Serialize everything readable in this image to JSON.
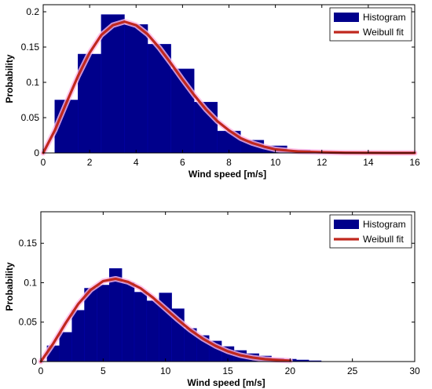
{
  "colors": {
    "histogram": "#00008b",
    "fit": "#c0281e",
    "fit_glow": "#ffb6e6",
    "axes": "#000000"
  },
  "chart_data": [
    {
      "type": "bar",
      "title": "",
      "xlabel": "Wind speed [m/s]",
      "ylabel": "Probability",
      "xlim": [
        0,
        16
      ],
      "ylim": [
        0,
        0.21
      ],
      "xticks": [
        0,
        2,
        4,
        6,
        8,
        10,
        12,
        14,
        16
      ],
      "yticks": [
        0,
        0.05,
        0.1,
        0.15,
        0.2
      ],
      "ytick_labels": [
        "0",
        "0.05",
        "0.1",
        "0.15",
        "0.2"
      ],
      "grid": false,
      "legend_position": "top-right",
      "series": [
        {
          "name": "Histogram",
          "type": "bar",
          "bin_width": 1,
          "x": [
            1,
            2,
            3,
            4,
            5,
            6,
            7,
            8,
            9,
            10,
            11
          ],
          "values": [
            0.075,
            0.14,
            0.196,
            0.182,
            0.154,
            0.119,
            0.072,
            0.031,
            0.018,
            0.01,
            0.004
          ]
        },
        {
          "name": "Weibull fit",
          "type": "line",
          "shape_k": 2.2,
          "scale_c": 4.9,
          "x": [
            0,
            0.5,
            1,
            1.5,
            2,
            2.5,
            3,
            3.5,
            4,
            4.5,
            5,
            5.5,
            6,
            6.5,
            7,
            7.5,
            8,
            8.5,
            9,
            9.5,
            10,
            11,
            12,
            13,
            14,
            15,
            16
          ],
          "values": [
            0,
            0.032,
            0.071,
            0.109,
            0.142,
            0.167,
            0.181,
            0.186,
            0.181,
            0.168,
            0.149,
            0.127,
            0.104,
            0.082,
            0.062,
            0.045,
            0.032,
            0.021,
            0.014,
            0.009,
            0.005,
            0.002,
            0.001,
            0.0003,
            0.0001,
            0,
            0
          ]
        }
      ]
    },
    {
      "type": "bar",
      "title": "",
      "xlabel": "Wind speed [m/s]",
      "ylabel": "Probability",
      "xlim": [
        0,
        30
      ],
      "ylim": [
        0,
        0.19
      ],
      "xticks": [
        0,
        5,
        10,
        15,
        20,
        25,
        30
      ],
      "yticks": [
        0,
        0.05,
        0.1,
        0.15
      ],
      "ytick_labels": [
        "0",
        "0.05",
        "0.1",
        "0.15"
      ],
      "grid": false,
      "legend_position": "top-right",
      "series": [
        {
          "name": "Histogram",
          "type": "bar",
          "bin_width": 1,
          "x": [
            1,
            2,
            3,
            4,
            5,
            6,
            7,
            8,
            9,
            10,
            11,
            12,
            13,
            14,
            15,
            16,
            17,
            18,
            19,
            20,
            21,
            22
          ],
          "values": [
            0.02,
            0.037,
            0.065,
            0.093,
            0.097,
            0.118,
            0.1,
            0.088,
            0.077,
            0.087,
            0.067,
            0.042,
            0.033,
            0.026,
            0.019,
            0.014,
            0.01,
            0.007,
            0.004,
            0.003,
            0.002,
            0.001
          ]
        },
        {
          "name": "Weibull fit",
          "type": "line",
          "shape_k": 2.2,
          "scale_c": 8.6,
          "x": [
            0,
            1,
            2,
            3,
            4,
            5,
            6,
            7,
            8,
            9,
            10,
            11,
            12,
            13,
            14,
            15,
            16,
            17,
            18,
            19,
            20
          ],
          "values": [
            0,
            0.023,
            0.049,
            0.073,
            0.091,
            0.102,
            0.105,
            0.101,
            0.093,
            0.081,
            0.067,
            0.053,
            0.04,
            0.029,
            0.02,
            0.013,
            0.008,
            0.005,
            0.003,
            0.002,
            0.001
          ]
        }
      ]
    }
  ]
}
